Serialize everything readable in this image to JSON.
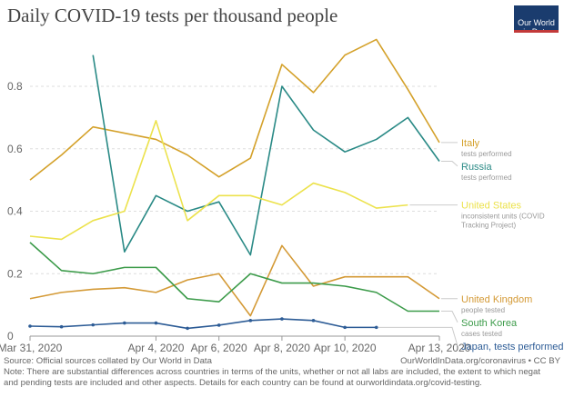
{
  "header": {
    "title": "Daily COVID-19 tests per thousand people",
    "logo": "Our World\nin Data"
  },
  "footer": {
    "source": "Source: Official sources collated by Our World in Data",
    "credit": "OurWorldInData.org/coronavirus • CC BY",
    "note_line1": "Note: There are substantial differences across countries in terms of the units, whether or not all labs are included, the extent to which negat",
    "note_line2": "and pending tests are included and other aspects. Details for each country can be found at ourworldindata.org/covid-testing."
  },
  "chart_data": {
    "type": "line",
    "title": "Daily COVID-19 tests per thousand people",
    "x_ticks": [
      "Mar 31, 2020",
      "Apr 4, 2020",
      "Apr 6, 2020",
      "Apr 8, 2020",
      "Apr 10, 2020",
      "Apr 13, 2020"
    ],
    "x_tick_values": [
      0,
      4,
      6,
      8,
      10,
      13
    ],
    "y_ticks": [
      "0",
      "0.2",
      "0.4",
      "0.6",
      "0.8"
    ],
    "y_tick_values": [
      0,
      0.2,
      0.4,
      0.6,
      0.8
    ],
    "xlim": [
      0,
      13
    ],
    "ylim": [
      0,
      0.96
    ],
    "grid": "horizontal-dashed",
    "legend": "right",
    "x": [
      0,
      1,
      2,
      3,
      4,
      5,
      6,
      7,
      8,
      9,
      10,
      11,
      12,
      13
    ],
    "series": [
      {
        "name": "Italy",
        "sublabel": "tests performed",
        "color": "#d4a12a",
        "markers": false,
        "values": [
          0.5,
          0.58,
          0.67,
          0.65,
          0.63,
          0.58,
          0.51,
          0.57,
          0.87,
          0.78,
          0.9,
          0.95,
          0.79,
          0.62
        ]
      },
      {
        "name": "Russia",
        "sublabel": "tests performed",
        "color": "#2a8a86",
        "markers": false,
        "values": [
          null,
          null,
          0.9,
          0.27,
          0.45,
          0.4,
          0.43,
          0.26,
          0.8,
          0.66,
          0.59,
          0.63,
          0.7,
          0.56
        ]
      },
      {
        "name": "United States",
        "sublabel": "inconsistent units (COVID Tracking Project)",
        "color": "#ece24c",
        "markers": false,
        "values": [
          0.32,
          0.31,
          0.37,
          0.4,
          0.69,
          0.37,
          0.45,
          0.45,
          0.42,
          0.49,
          0.46,
          0.41,
          0.42,
          null
        ]
      },
      {
        "name": "United Kingdom",
        "sublabel": "people tested",
        "color": "#d49a36",
        "markers": false,
        "values": [
          0.12,
          0.14,
          0.15,
          0.155,
          0.14,
          0.18,
          0.2,
          0.065,
          0.29,
          0.16,
          0.19,
          0.19,
          0.19,
          0.12
        ]
      },
      {
        "name": "South Korea",
        "sublabel": "cases tested",
        "color": "#3c9b4a",
        "markers": false,
        "values": [
          0.3,
          0.21,
          0.2,
          0.22,
          0.22,
          0.12,
          0.11,
          0.2,
          0.17,
          0.17,
          0.16,
          0.14,
          0.08,
          0.08
        ]
      },
      {
        "name": "Japan, tests performed",
        "sublabel": "",
        "color": "#2d5c96",
        "markers": true,
        "values": [
          0.032,
          0.03,
          0.036,
          0.042,
          0.042,
          0.025,
          0.035,
          0.05,
          0.055,
          0.05,
          0.028,
          0.028,
          null,
          null
        ]
      }
    ]
  }
}
